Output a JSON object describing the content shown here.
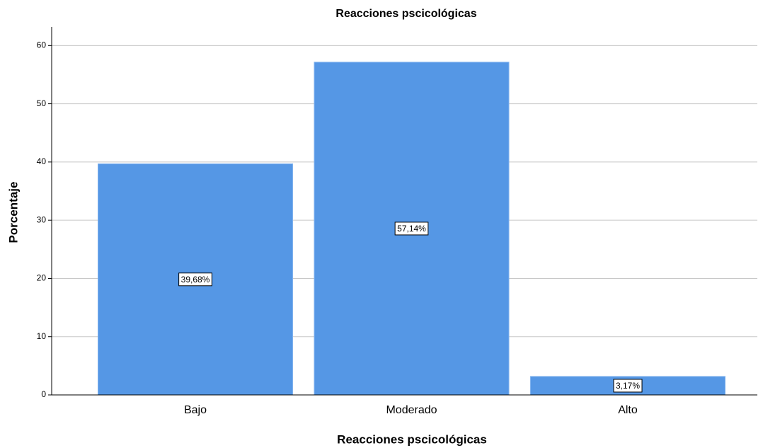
{
  "chart_data": {
    "type": "bar",
    "title": "Reacciones pscicológicas",
    "x_label": "Reacciones pscicológicas",
    "y_label": "Porcentaje",
    "categories": [
      "Bajo",
      "Moderado",
      "Alto"
    ],
    "values": [
      39.68,
      57.14,
      3.17
    ],
    "value_labels": [
      "39,68%",
      "57,14%",
      "3,17%"
    ],
    "color": "#5597e5",
    "ylim": [
      0,
      63.2
    ],
    "yticks": [
      0,
      10,
      20,
      30,
      40,
      50,
      60
    ],
    "grid": true
  }
}
